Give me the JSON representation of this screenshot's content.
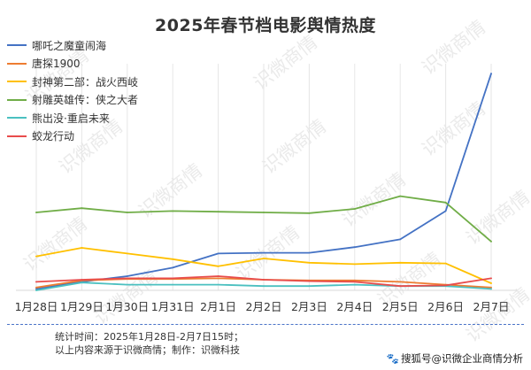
{
  "chart_data": {
    "type": "line",
    "title": "2025年春节档电影舆情热度",
    "categories": [
      "1月28日",
      "1月29日",
      "1月30日",
      "1月31日",
      "2月1日",
      "2月2日",
      "2月3日",
      "2月4日",
      "2月5日",
      "2月6日",
      "2月7日"
    ],
    "ylim": [
      0,
      100
    ],
    "grid": "vertical",
    "legend_position": "top-left",
    "series": [
      {
        "name": "哪吒之魔童闹海",
        "color": "#4472c4",
        "values": [
          1,
          6,
          10,
          16,
          26,
          26.5,
          26.5,
          30.5,
          36,
          56,
          153
        ]
      },
      {
        "name": "唐探1900",
        "color": "#ed7d31",
        "values": [
          2,
          7,
          8,
          8,
          8.5,
          7.5,
          7,
          7,
          6,
          4,
          2
        ]
      },
      {
        "name": "封神第二部：战火西岐",
        "color": "#ffc000",
        "values": [
          24,
          30,
          26,
          22,
          17,
          22.5,
          19.5,
          18.5,
          19.5,
          19,
          5
        ]
      },
      {
        "name": "射雕英雄传：侠之大者",
        "color": "#70ad47",
        "values": [
          55,
          58,
          55,
          56,
          55.5,
          55,
          54.5,
          57.5,
          66.5,
          62,
          34.5
        ]
      },
      {
        "name": "熊出没·重启未来",
        "color": "#4bc0c0",
        "values": [
          0,
          5.5,
          4,
          4,
          4,
          3,
          3,
          4,
          3,
          3,
          1
        ]
      },
      {
        "name": "蛟龙行动",
        "color": "#e84c4c",
        "values": [
          6,
          7.5,
          8.5,
          8.5,
          10,
          7.5,
          6.5,
          6,
          3,
          3.5,
          8.5
        ]
      }
    ]
  },
  "watermark_text": "识微商情",
  "footer": {
    "line1": "统计时间：2025年1月28日-2月7日15时；",
    "line2": "以上内容来源于识微商情；制作：识微科技"
  },
  "credit": {
    "icon": "paw-icon",
    "text": "搜狐号@识微企业商情分析"
  }
}
